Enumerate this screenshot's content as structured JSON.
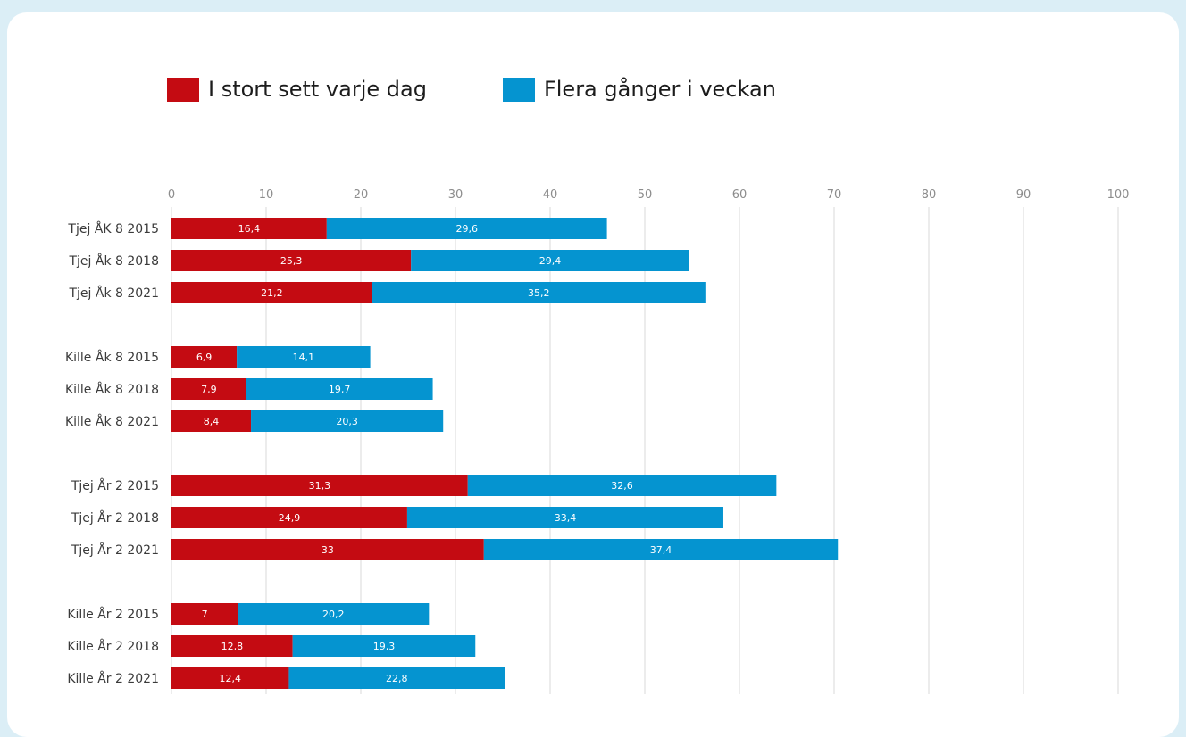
{
  "colors": {
    "series1": "#c40b12",
    "series2": "#0594d0",
    "grid": "#d9d9d9",
    "background": "#dbeef6"
  },
  "chart_data": {
    "type": "bar",
    "orientation": "horizontal",
    "stacked": true,
    "xlim": [
      0,
      100
    ],
    "xticks": [
      "0",
      "10",
      "20",
      "30",
      "40",
      "50",
      "60",
      "70",
      "80",
      "90",
      "100"
    ],
    "grid": true,
    "legend_position": "top-left",
    "categories": [
      "Tjej ÅK 8 2015",
      "Tjej Åk 8 2018",
      "Tjej Åk 8 2021",
      "Kille Åk 8 2015",
      "Kille Åk 8 2018",
      "Kille Åk 8 2021",
      "Tjej År 2 2015",
      "Tjej År 2 2018",
      "Tjej År 2 2021",
      "Kille År 2 2015",
      "Kille År 2 2018",
      "Kille År 2 2021"
    ],
    "series": [
      {
        "name": "I stort sett varje dag",
        "values": [
          16.4,
          25.3,
          21.2,
          6.9,
          7.9,
          8.4,
          31.3,
          24.9,
          33,
          7,
          12.8,
          12.4
        ],
        "labels": [
          "16,4",
          "25,3",
          "21,2",
          "6,9",
          "7,9",
          "8,4",
          "31,3",
          "24,9",
          "33",
          "7",
          "12,8",
          "12,4"
        ]
      },
      {
        "name": "Flera gånger i veckan",
        "values": [
          29.6,
          29.4,
          35.2,
          14.1,
          19.7,
          20.3,
          32.6,
          33.4,
          37.4,
          20.2,
          19.3,
          22.8
        ],
        "labels": [
          "29,6",
          "29,4",
          "35,2",
          "14,1",
          "19,7",
          "20,3",
          "32,6",
          "33,4",
          "37,4",
          "20,2",
          "19,3",
          "22,8"
        ]
      }
    ]
  }
}
